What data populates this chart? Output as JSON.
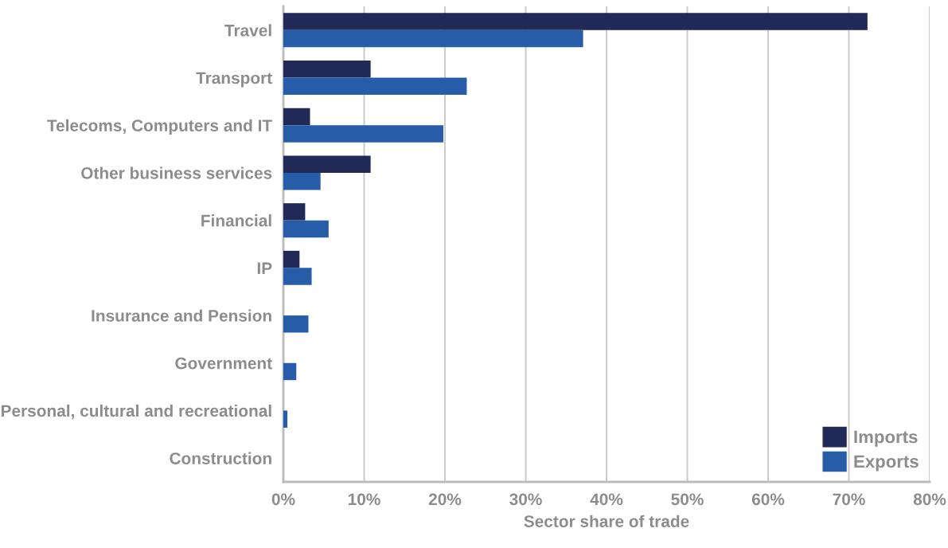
{
  "chart_data": {
    "type": "bar",
    "orientation": "horizontal",
    "xlabel": "Sector share of trade",
    "categories": [
      "Travel",
      "Transport",
      "Telecoms, Computers and IT",
      "Other business services",
      "Financial",
      "IP",
      "Insurance and Pension",
      "Government",
      "Personal, cultural and recreational",
      "Construction"
    ],
    "series": [
      {
        "name": "Imports",
        "color": "#212a57",
        "values": [
          72.3,
          10.8,
          3.3,
          10.8,
          2.7,
          2.0,
          null,
          null,
          null,
          null
        ]
      },
      {
        "name": "Exports",
        "color": "#275da8",
        "values": [
          37.1,
          22.7,
          19.8,
          4.6,
          5.6,
          3.5,
          3.1,
          1.6,
          0.5,
          null
        ]
      }
    ],
    "xlim": [
      0,
      80
    ],
    "xticks": [
      {
        "value": 0,
        "label": "0%"
      },
      {
        "value": 10,
        "label": "10%"
      },
      {
        "value": 20,
        "label": "20%"
      },
      {
        "value": 30,
        "label": "30%"
      },
      {
        "value": 40,
        "label": "40%"
      },
      {
        "value": 50,
        "label": "50%"
      },
      {
        "value": 60,
        "label": "60%"
      },
      {
        "value": 70,
        "label": "70%"
      },
      {
        "value": 80,
        "label": "80%"
      }
    ],
    "grid": "x",
    "legend": "bottom right"
  }
}
